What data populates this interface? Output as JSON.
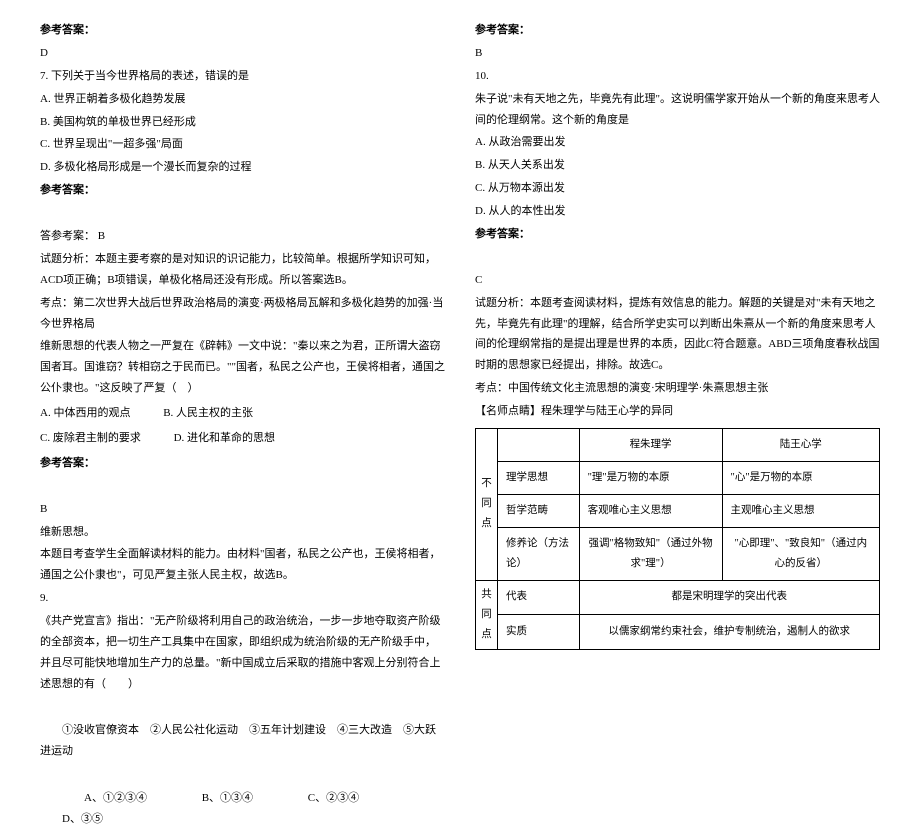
{
  "labels": {
    "answer_label": "参考答案：",
    "analysis_label": "试题分析：",
    "point_label": "考点：",
    "tip_label": "【名师点睛】",
    "answer_ref": "答参考案："
  },
  "q6": {
    "answer": "D"
  },
  "q7": {
    "stem": "7. 下列关于当今世界格局的表述，错误的是",
    "A": "A. 世界正朝着多极化趋势发展",
    "B": "B. 美国构筑的单极世界已经形成",
    "C": "C. 世界呈现出\"一超多强\"局面",
    "D": "D. 多极化格局形成是一个漫长而复杂的过程",
    "answer_line": "B",
    "analysis": "本题主要考察的是对知识的识记能力，比较简单。根据所学知识可知，ACD项正确；B项错误，单极化格局还没有形成。所以答案选B。",
    "point": "第二次世界大战后世界政治格局的演变·两极格局瓦解和多极化趋势的加强·当今世界格局"
  },
  "q8": {
    "stem": "维新思想的代表人物之一严复在《辟韩》一文中说：\"秦以来之为君，正所谓大盗窃国者耳。国谁窃？转相窃之于民而已。\"\"国者，私民之公产也，王侯将相者，通国之公仆隶也。\"这反映了严复（　）",
    "A": "A. 中体西用的观点",
    "B": "B. 人民主权的主张",
    "C": "C. 废除君主制的要求",
    "D": "D. 进化和革命的思想",
    "answer": "B",
    "explain1": "维新思想。",
    "explain2": "本题目考查学生全面解读材料的能力。由材料\"国者，私民之公产也，王侯将相者，通国之公仆隶也\"，可见严复主张人民主权，故选B。"
  },
  "q9": {
    "num": "9.",
    "stem": "《共产党宣言》指出：\"无产阶级将利用自己的政治统治，一步一步地夺取资产阶级的全部资本，把一切生产工具集中在国家，即组织成为统治阶级的无产阶级手中，并且尽可能快地增加生产力的总量。\"新中国成立后采取的措施中客观上分别符合上述思想的有（　　）",
    "choices": "①没收官僚资本　②人民公社化运动　③五年计划建设　④三大改造　⑤大跃进运动",
    "A": "A、①②③④",
    "B": "B、①③④",
    "C": "C、②③④",
    "D": "D、③⑤"
  },
  "q9ans": {
    "answer": "B"
  },
  "q10": {
    "num": "10.",
    "stem": "朱子说\"未有天地之先，毕竟先有此理\"。这说明儒学家开始从一个新的角度来思考人间的伦理纲常。这个新的角度是",
    "A": "A. 从政治需要出发",
    "B": "B. 从天人关系出发",
    "C": "C. 从万物本源出发",
    "D": "D. 从人的本性出发",
    "answer": "C",
    "analysis": "本题考查阅读材料，提炼有效信息的能力。解题的关键是对\"未有天地之先，毕竟先有此理\"的理解，结合所学史实可以判断出朱熹从一个新的角度来思考人间的伦理纲常指的是提出理是世界的本质，因此C符合题意。ABD三项角度春秋战国时期的思想家已经提出，排除。故选C。",
    "point": "中国传统文化主流思想的演变·宋明理学·朱熹思想主张",
    "tip": "程朱理学与陆王心学的异同"
  },
  "table": {
    "h1": "程朱理学",
    "h2": "陆王心学",
    "diff_label": "不同点",
    "same_label": "共同点",
    "r1c0": "理学思想",
    "r1c1": "\"理\"是万物的本原",
    "r1c2": "\"心\"是万物的本原",
    "r2c0": "哲学范畴",
    "r2c1": "客观唯心主义思想",
    "r2c2": "主观唯心主义思想",
    "r3c0": "修养论（方法论）",
    "r3c1": "强调\"格物致知\"（通过外物求\"理\"）",
    "r3c2": "\"心即理\"、\"致良知\"（通过内心的反省）",
    "r4c0": "代表",
    "r4c1": "都是宋明理学的突出代表",
    "r5c0": "实质",
    "r5c1": "以儒家纲常约束社会，维护专制统治，遏制人的欲求"
  }
}
